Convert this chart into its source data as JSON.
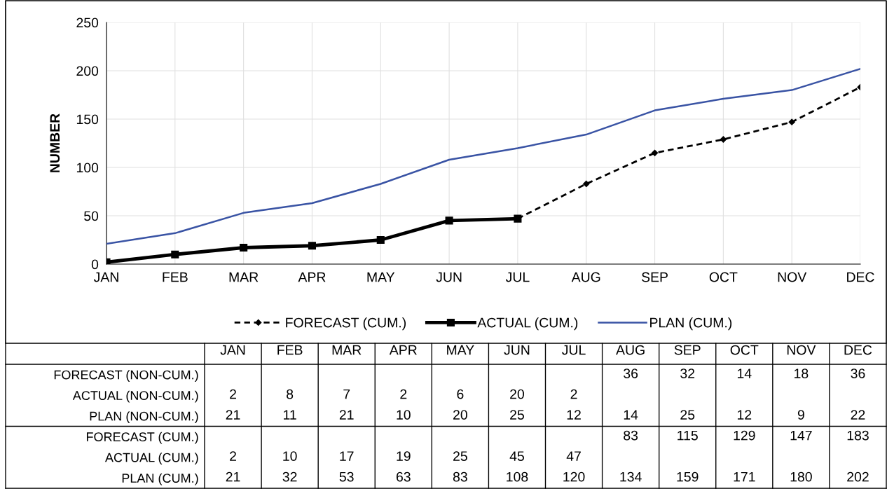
{
  "chart_data": [
    {
      "type": "line",
      "ylabel": "NUMBER",
      "categories": [
        "JAN",
        "FEB",
        "MAR",
        "APR",
        "MAY",
        "JUN",
        "JUL",
        "AUG",
        "SEP",
        "OCT",
        "NOV",
        "DEC"
      ],
      "ylim": [
        0,
        250
      ],
      "yticks": [
        0,
        50,
        100,
        150,
        200,
        250
      ],
      "grid": true,
      "legend": "bottom",
      "series": [
        {
          "name": "FORECAST (CUM.)",
          "color": "#000000",
          "marker": "diamond",
          "line_style": "dashed",
          "values": [
            null,
            null,
            null,
            null,
            null,
            null,
            47,
            83,
            115,
            129,
            147,
            183
          ]
        },
        {
          "name": "ACTUAL (CUM.)",
          "color": "#000000",
          "marker": "square",
          "line_style": "solid",
          "values": [
            2,
            10,
            17,
            19,
            25,
            45,
            47,
            null,
            null,
            null,
            null,
            null
          ]
        },
        {
          "name": "PLAN (CUM.)",
          "color": "#3953a4",
          "marker": "none",
          "line_style": "solid",
          "values": [
            21,
            32,
            53,
            63,
            83,
            108,
            120,
            134,
            159,
            171,
            180,
            202
          ]
        }
      ]
    },
    {
      "type": "heatmap",
      "data_labels": true,
      "categories": [
        "JAN",
        "FEB",
        "MAR",
        "APR",
        "MAY",
        "JUN",
        "JUL",
        "AUG",
        "SEP",
        "OCT",
        "NOV",
        "DEC"
      ],
      "y_categories": [
        "FORECAST (NON-CUM.)",
        "ACTUAL (NON-CUM.)",
        "PLAN (NON-CUM.)",
        "FORECAST (CUM.)",
        "ACTUAL (CUM.)",
        "PLAN (CUM.)"
      ],
      "cells": [
        [
          null,
          null,
          null,
          null,
          null,
          null,
          null,
          36,
          32,
          14,
          18,
          36
        ],
        [
          2,
          8,
          7,
          2,
          6,
          20,
          2,
          null,
          null,
          null,
          null,
          null
        ],
        [
          21,
          11,
          21,
          10,
          20,
          25,
          12,
          14,
          25,
          12,
          9,
          22
        ],
        [
          null,
          null,
          null,
          null,
          null,
          null,
          null,
          83,
          115,
          129,
          147,
          183
        ],
        [
          2,
          10,
          17,
          19,
          25,
          45,
          47,
          null,
          null,
          null,
          null,
          null
        ],
        [
          21,
          32,
          53,
          63,
          83,
          108,
          120,
          134,
          159,
          171,
          180,
          202
        ]
      ]
    }
  ]
}
